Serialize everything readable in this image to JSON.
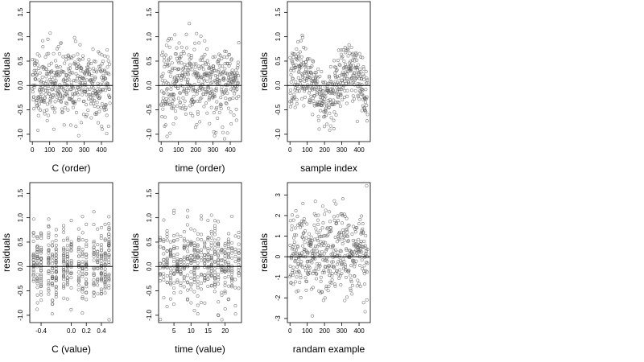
{
  "chart_data": [
    {
      "type": "scatter",
      "xlabel": "C (order)",
      "ylabel": "residuals",
      "xlim": [
        -15,
        465
      ],
      "ylim": [
        -1.15,
        1.72
      ],
      "xticks": [
        0,
        100,
        200,
        300,
        400
      ],
      "xtick_labels": [
        "0",
        "100",
        "200",
        "300",
        "400"
      ],
      "yticks": [
        -1.0,
        -0.5,
        0.0,
        0.5,
        1.0,
        1.5
      ],
      "ytick_labels": [
        "-1.0",
        "-0.5",
        "0.0",
        "0.5",
        "1.0",
        "1.5"
      ],
      "reference_line_y": 0,
      "n_points": 450,
      "pattern": "order",
      "sd": 0.38,
      "seed": 11
    },
    {
      "type": "scatter",
      "xlabel": "time (order)",
      "ylabel": "residuals",
      "xlim": [
        -15,
        465
      ],
      "ylim": [
        -1.15,
        1.72
      ],
      "xticks": [
        0,
        100,
        200,
        300,
        400
      ],
      "xtick_labels": [
        "0",
        "100",
        "200",
        "300",
        "400"
      ],
      "yticks": [
        -1.0,
        -0.5,
        0.0,
        0.5,
        1.0,
        1.5
      ],
      "ytick_labels": [
        "-1.0",
        "-0.5",
        "0.0",
        "0.5",
        "1.0",
        "1.5"
      ],
      "reference_line_y": 0,
      "n_points": 450,
      "pattern": "order",
      "sd": 0.4,
      "seed": 23
    },
    {
      "type": "scatter",
      "xlabel": "sample index",
      "ylabel": "residuals",
      "xlim": [
        -15,
        465
      ],
      "ylim": [
        -1.15,
        1.72
      ],
      "xticks": [
        0,
        100,
        200,
        300,
        400
      ],
      "xtick_labels": [
        "0",
        "100",
        "200",
        "300",
        "400"
      ],
      "yticks": [
        -1.0,
        -0.5,
        0.0,
        0.5,
        1.0,
        1.5
      ],
      "ytick_labels": [
        "-1.0",
        "-0.5",
        "0.0",
        "0.5",
        "1.0",
        "1.5"
      ],
      "reference_line_y": 0,
      "n_points": 450,
      "pattern": "wave",
      "sd": 0.3,
      "seed": 37
    },
    {
      "type": "scatter",
      "xlabel": "C (value)",
      "ylabel": "residuals",
      "xlim": [
        -0.55,
        0.55
      ],
      "ylim": [
        -1.15,
        1.72
      ],
      "xticks": [
        -0.4,
        0.0,
        0.2,
        0.4
      ],
      "xtick_labels": [
        "-0.4",
        "0.0",
        "0.2",
        "0.4"
      ],
      "yticks": [
        -1.0,
        -0.5,
        0.0,
        0.5,
        1.0,
        1.5
      ],
      "ytick_labels": [
        "-1.0",
        "-0.5",
        "0.0",
        "0.5",
        "1.0",
        "1.5"
      ],
      "reference_line_y": 0,
      "n_points": 450,
      "pattern": "columns",
      "column_x": [
        -0.5,
        -0.45,
        -0.4,
        -0.3,
        -0.25,
        -0.2,
        -0.1,
        -0.05,
        0.0,
        0.1,
        0.15,
        0.2,
        0.3,
        0.35,
        0.4,
        0.45,
        0.5
      ],
      "sd": 0.4,
      "seed": 41
    },
    {
      "type": "scatter",
      "xlabel": "time (value)",
      "ylabel": "residuals",
      "xlim": [
        0.5,
        24.8
      ],
      "ylim": [
        -1.15,
        1.72
      ],
      "xticks": [
        5,
        10,
        15,
        20
      ],
      "xtick_labels": [
        "5",
        "10",
        "15",
        "20"
      ],
      "yticks": [
        -1.0,
        -0.5,
        0.0,
        0.5,
        1.0,
        1.5
      ],
      "ytick_labels": [
        "-1.0",
        "-0.5",
        "0.0",
        "0.5",
        "1.0",
        "1.5"
      ],
      "reference_line_y": 0,
      "n_points": 450,
      "pattern": "columns",
      "column_x": [
        1,
        2,
        3,
        4,
        5,
        6,
        7,
        8,
        9,
        10,
        11,
        12,
        13,
        14,
        15,
        16,
        17,
        18,
        19,
        20,
        21,
        22,
        23,
        24
      ],
      "sd": 0.4,
      "seed": 53
    },
    {
      "type": "scatter",
      "xlabel": "randam example",
      "ylabel": "residuals",
      "xlim": [
        -15,
        465
      ],
      "ylim": [
        -3.2,
        3.6
      ],
      "xticks": [
        0,
        100,
        200,
        300,
        400
      ],
      "xtick_labels": [
        "0",
        "100",
        "200",
        "300",
        "400"
      ],
      "yticks": [
        -3,
        -2,
        -1,
        0,
        1,
        2,
        3
      ],
      "ytick_labels": [
        "-3",
        "-2",
        "-1",
        "0",
        "1",
        "2",
        "3"
      ],
      "reference_line_y": 0,
      "n_points": 450,
      "pattern": "order",
      "sd": 1.0,
      "seed": 67
    }
  ]
}
